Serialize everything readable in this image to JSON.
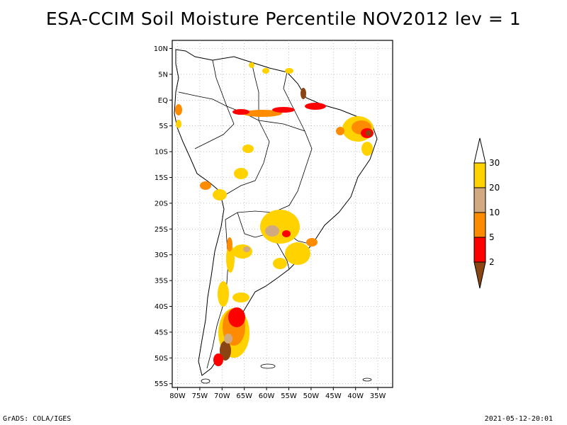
{
  "title": "ESA-CCIM Soil Moisture Percentile NOV2012 lev = 1",
  "footer_left": "GrADS: COLA/IGES",
  "footer_right": "2021-05-12-20:01",
  "map": {
    "lat_labels": [
      "10N",
      "5N",
      "EQ",
      "5S",
      "10S",
      "15S",
      "20S",
      "25S",
      "30S",
      "35S",
      "40S",
      "45S",
      "50S",
      "55S"
    ],
    "lon_labels": [
      "80W",
      "75W",
      "70W",
      "65W",
      "60W",
      "55W",
      "50W",
      "45W",
      "40W",
      "35W"
    ]
  },
  "legend": {
    "labels": [
      "30",
      "20",
      "10",
      "5",
      "2"
    ],
    "colors": {
      "above30": "#ffffff",
      "c20_30": "#ffd200",
      "c10_20": "#d2aa82",
      "c5_10": "#ff8c00",
      "c2_5": "#ff0000",
      "below2": "#8b4513"
    }
  }
}
